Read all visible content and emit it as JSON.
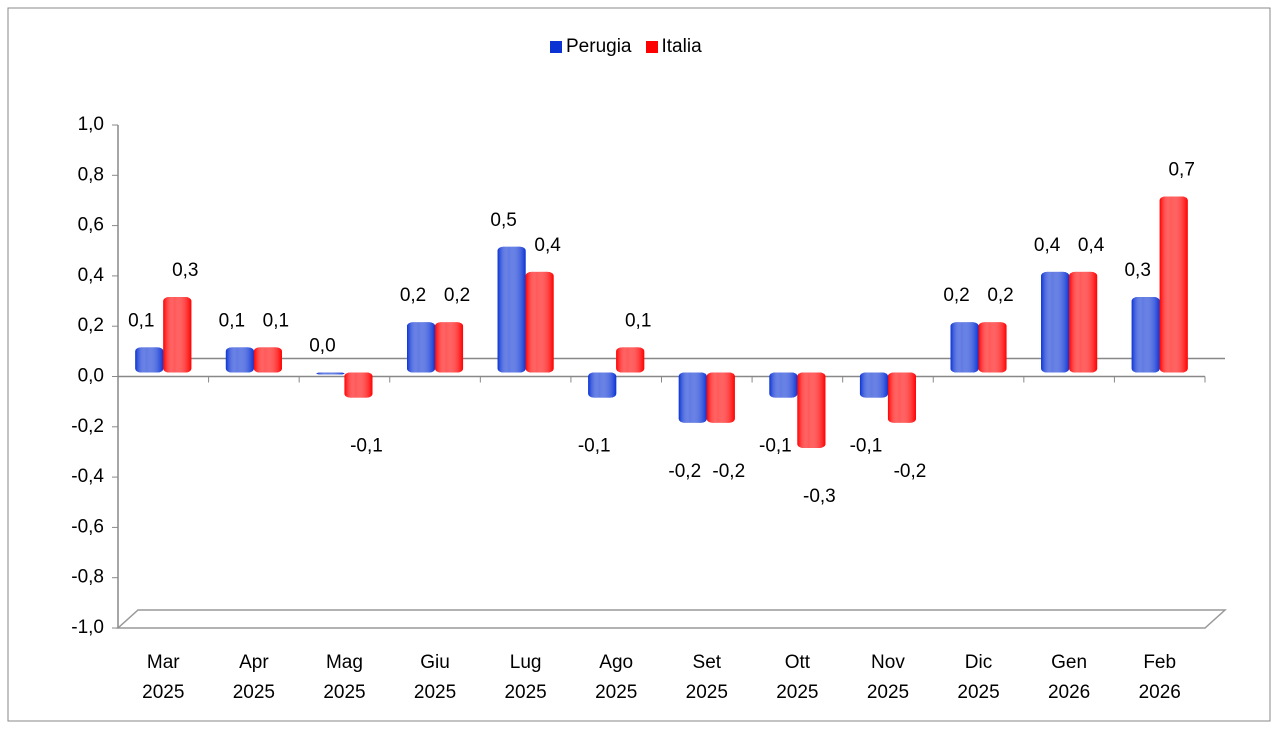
{
  "chart_data": {
    "type": "bar",
    "categories": [
      "Mar 2025",
      "Apr 2025",
      "Mag 2025",
      "Giu 2025",
      "Lug 2025",
      "Ago 2025",
      "Set 2025",
      "Ott 2025",
      "Nov 2025",
      "Dic 2025",
      "Gen 2026",
      "Feb 2026"
    ],
    "series": [
      {
        "name": "Perugia",
        "color": "#0b33d4",
        "values": [
          0.1,
          0.1,
          0.0,
          0.2,
          0.5,
          -0.1,
          -0.2,
          -0.1,
          -0.1,
          0.2,
          0.4,
          0.3
        ],
        "value_labels": [
          "0,1",
          "0,1",
          "0,0",
          "0,2",
          "0,5",
          "-0,1",
          "-0,2",
          "-0,1",
          "-0,1",
          "0,2",
          "0,4",
          "0,3"
        ]
      },
      {
        "name": "Italia",
        "color": "#ff0000",
        "values": [
          0.3,
          0.1,
          -0.1,
          0.2,
          0.4,
          0.1,
          -0.2,
          -0.3,
          -0.2,
          0.2,
          0.4,
          0.7
        ],
        "value_labels": [
          "0,3",
          "0,1",
          "-0,1",
          "0,2",
          "0,4",
          "0,1",
          "-0,2",
          "-0,3",
          "-0,2",
          "0,2",
          "0,4",
          "0,7"
        ]
      }
    ],
    "ylim": [
      -1,
      1
    ],
    "yticks": [
      {
        "value": -1,
        "label": "-1,0"
      },
      {
        "value": -0.8,
        "label": "-0,8"
      },
      {
        "value": -0.6,
        "label": "-0,6"
      },
      {
        "value": -0.4,
        "label": "-0,4"
      },
      {
        "value": -0.2,
        "label": "-0,2"
      },
      {
        "value": 0,
        "label": "0,0"
      },
      {
        "value": 0.2,
        "label": "0,2"
      },
      {
        "value": 0.4,
        "label": "0,4"
      },
      {
        "value": 0.6,
        "label": "0,6"
      },
      {
        "value": 0.8,
        "label": "0,8"
      },
      {
        "value": 1,
        "label": "1,0"
      }
    ],
    "legend": "top"
  }
}
